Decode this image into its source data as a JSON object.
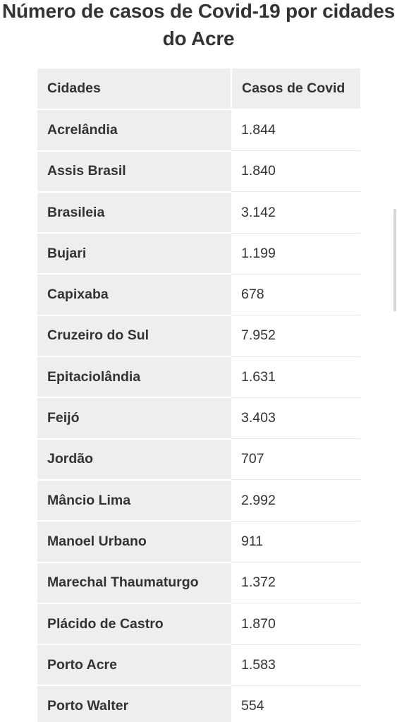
{
  "title": "Número de casos de Covid-19 por cidades do Acre",
  "table": {
    "headers": [
      "Cidades",
      "Casos de Covid"
    ],
    "rows": [
      {
        "city": "Acrelândia",
        "cases": "1.844"
      },
      {
        "city": "Assis Brasil",
        "cases": "1.840"
      },
      {
        "city": "Brasileia",
        "cases": "3.142"
      },
      {
        "city": "Bujari",
        "cases": "1.199"
      },
      {
        "city": "Capixaba",
        "cases": "678"
      },
      {
        "city": "Cruzeiro do Sul",
        "cases": "7.952"
      },
      {
        "city": "Epitaciolândia",
        "cases": "1.631"
      },
      {
        "city": "Feijó",
        "cases": "3.403"
      },
      {
        "city": "Jordão",
        "cases": "707"
      },
      {
        "city": "Mâncio Lima",
        "cases": "2.992"
      },
      {
        "city": "Manoel Urbano",
        "cases": "911"
      },
      {
        "city": "Marechal Thaumaturgo",
        "cases": "1.372"
      },
      {
        "city": "Plácido de Castro",
        "cases": "1.870"
      },
      {
        "city": "Porto Acre",
        "cases": "1.583"
      },
      {
        "city": "Porto Walter",
        "cases": "554"
      }
    ]
  }
}
